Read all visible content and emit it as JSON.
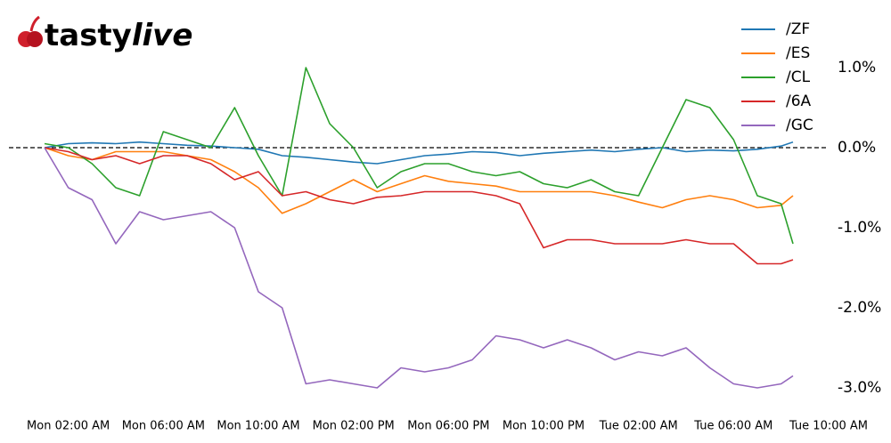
{
  "chart_data": {
    "type": "line",
    "logo": {
      "main": "tasty",
      "accent": "live"
    },
    "x": [
      1,
      2,
      3,
      4,
      5,
      6,
      7,
      8,
      9,
      10,
      11,
      12,
      13,
      14,
      15,
      16,
      17,
      18,
      19,
      20,
      21,
      22,
      23,
      24,
      25,
      26,
      27,
      28,
      29,
      30,
      31,
      32,
      32.5
    ],
    "xlim": [
      -0.5,
      34
    ],
    "xticks": [
      {
        "value": 2,
        "label": "Mon 02:00 AM"
      },
      {
        "value": 6,
        "label": "Mon 06:00 AM"
      },
      {
        "value": 10,
        "label": "Mon 10:00 AM"
      },
      {
        "value": 14,
        "label": "Mon 02:00 PM"
      },
      {
        "value": 18,
        "label": "Mon 06:00 PM"
      },
      {
        "value": 22,
        "label": "Mon 10:00 PM"
      },
      {
        "value": 26,
        "label": "Tue 02:00 AM"
      },
      {
        "value": 30,
        "label": "Tue 06:00 AM"
      },
      {
        "value": 34,
        "label": "Tue 10:00 AM"
      }
    ],
    "ylim": [
      -3.15,
      1.55
    ],
    "yticks": [
      {
        "value": -3,
        "label": "-3.0%"
      },
      {
        "value": -2,
        "label": "-2.0%"
      },
      {
        "value": -1,
        "label": "-1.0%"
      },
      {
        "value": 0,
        "label": "0.0%"
      },
      {
        "value": 1,
        "label": "1.0%"
      }
    ],
    "zero_line": "dashed",
    "legend": "upper right",
    "series": [
      {
        "name": "/ZF",
        "color": "#1f77b4",
        "values": [
          0.0,
          0.05,
          0.06,
          0.05,
          0.07,
          0.05,
          0.03,
          0.02,
          0.0,
          -0.02,
          -0.1,
          -0.12,
          -0.15,
          -0.18,
          -0.2,
          -0.15,
          -0.1,
          -0.08,
          -0.05,
          -0.06,
          -0.1,
          -0.07,
          -0.05,
          -0.03,
          -0.05,
          -0.02,
          0.0,
          -0.05,
          -0.03,
          -0.04,
          -0.02,
          0.02,
          0.07
        ]
      },
      {
        "name": "/ES",
        "color": "#ff7f0e",
        "values": [
          0.0,
          -0.1,
          -0.15,
          -0.05,
          -0.05,
          -0.05,
          -0.1,
          -0.15,
          -0.3,
          -0.5,
          -0.82,
          -0.7,
          -0.55,
          -0.4,
          -0.55,
          -0.45,
          -0.35,
          -0.42,
          -0.45,
          -0.48,
          -0.55,
          -0.55,
          -0.55,
          -0.55,
          -0.6,
          -0.68,
          -0.75,
          -0.65,
          -0.6,
          -0.65,
          -0.75,
          -0.72,
          -0.6
        ]
      },
      {
        "name": "/CL",
        "color": "#2ca02c",
        "values": [
          0.05,
          0.0,
          -0.2,
          -0.5,
          -0.6,
          0.2,
          0.1,
          0.0,
          0.5,
          -0.1,
          -0.6,
          1.0,
          0.3,
          0.0,
          -0.5,
          -0.3,
          -0.2,
          -0.2,
          -0.3,
          -0.35,
          -0.3,
          -0.45,
          -0.5,
          -0.4,
          -0.55,
          -0.6,
          0.0,
          0.6,
          0.5,
          0.1,
          -0.6,
          -0.7,
          -1.2
        ]
      },
      {
        "name": "/6A",
        "color": "#d62728",
        "values": [
          0.0,
          -0.05,
          -0.15,
          -0.1,
          -0.2,
          -0.1,
          -0.1,
          -0.2,
          -0.4,
          -0.3,
          -0.6,
          -0.55,
          -0.65,
          -0.7,
          -0.62,
          -0.6,
          -0.55,
          -0.55,
          -0.55,
          -0.6,
          -0.7,
          -1.25,
          -1.15,
          -1.15,
          -1.2,
          -1.2,
          -1.2,
          -1.15,
          -1.2,
          -1.2,
          -1.45,
          -1.45,
          -1.4
        ]
      },
      {
        "name": "/GC",
        "color": "#9467bd",
        "values": [
          0.0,
          -0.5,
          -0.65,
          -1.2,
          -0.8,
          -0.9,
          -0.85,
          -0.8,
          -1.0,
          -1.8,
          -2.0,
          -2.95,
          -2.9,
          -2.95,
          -3.0,
          -2.75,
          -2.8,
          -2.75,
          -2.65,
          -2.35,
          -2.4,
          -2.5,
          -2.4,
          -2.5,
          -2.65,
          -2.55,
          -2.6,
          -2.5,
          -2.75,
          -2.95,
          -3.0,
          -2.95,
          -2.85
        ]
      }
    ]
  }
}
